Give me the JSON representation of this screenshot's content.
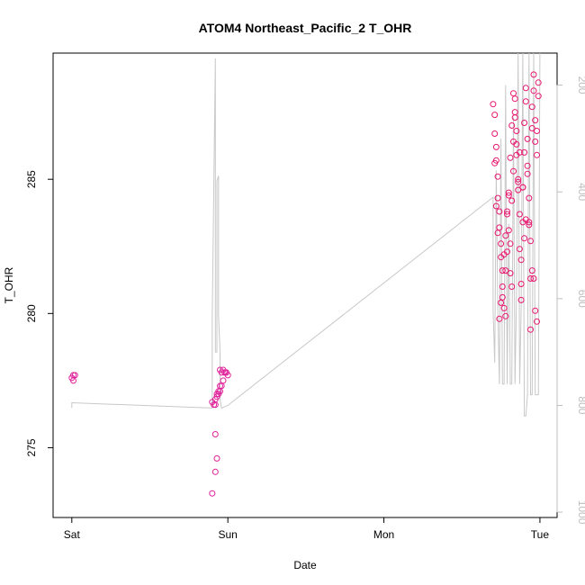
{
  "chart_data": {
    "type": "scatter",
    "title": "ATOM4 Northeast_Pacific_2 T_OHR",
    "xlabel": "Date",
    "ylabel": "T_OHR",
    "x_ticks": [
      {
        "label": "Sat",
        "value": 0
      },
      {
        "label": "Sun",
        "value": 1
      },
      {
        "label": "Mon",
        "value": 2
      },
      {
        "label": "Tue",
        "value": 3
      }
    ],
    "y_ticks": [
      275,
      280,
      285
    ],
    "y2_ticks": [
      200,
      400,
      600,
      800,
      1000
    ],
    "xlim": [
      -0.12,
      3.11
    ],
    "ylim": [
      272.4,
      289.7
    ],
    "y2lim": [
      1010,
      140
    ],
    "grid": false,
    "colors": {
      "axes": "#000000",
      "line": "#c8c8c8",
      "secondary_axis": "#bdbdbd",
      "points_low": "#e0209a",
      "points_high": "#e8146e"
    },
    "series": [
      {
        "kind": "points",
        "x": [
          0,
          0.01,
          0.01,
          0.02,
          0.9,
          0.91,
          0.92,
          0.93,
          0.94,
          0.95,
          0.96,
          0.97,
          0.98,
          0.99,
          1.0,
          0.92,
          0.92,
          0.93,
          0.92,
          0.9,
          0.93,
          0.94,
          0.95,
          0.95,
          0.96,
          0.97,
          0.98,
          0.99
        ],
        "y": [
          277.6,
          277.7,
          277.5,
          277.7,
          276.7,
          276.6,
          276.8,
          276.9,
          277.0,
          277.1,
          277.3,
          277.5,
          277.8,
          277.8,
          277.7,
          276.6,
          275.5,
          274.6,
          274.1,
          273.3,
          277.0,
          277.1,
          277.3,
          277.9,
          277.8,
          277.9,
          277.8,
          277.8
        ]
      },
      {
        "kind": "points",
        "x": [
          2.7,
          2.71,
          2.71,
          2.72,
          2.72,
          2.73,
          2.73,
          2.74,
          2.74,
          2.75,
          2.75,
          2.76,
          2.76,
          2.77,
          2.78,
          2.78,
          2.79,
          2.79,
          2.8,
          2.8,
          2.81,
          2.81,
          2.82,
          2.82,
          2.83,
          2.83,
          2.84,
          2.84,
          2.85,
          2.85,
          2.86,
          2.86,
          2.87,
          2.87,
          2.88,
          2.88,
          2.89,
          2.89,
          2.9,
          2.9,
          2.91,
          2.91,
          2.92,
          2.92,
          2.93,
          2.93,
          2.94,
          2.94,
          2.95,
          2.95,
          2.96,
          2.96,
          2.97,
          2.97,
          2.98,
          2.98,
          2.99,
          2.99,
          2.95,
          2.96,
          2.97,
          2.98,
          2.94,
          2.93,
          2.88,
          2.86,
          2.85,
          2.84,
          2.83,
          2.82,
          2.81,
          2.8,
          2.79,
          2.78,
          2.77,
          2.76,
          2.75,
          2.74,
          2.73,
          2.72,
          2.71,
          2.87,
          2.89,
          2.91,
          2.9,
          2.92
        ],
        "y": [
          287.8,
          287.4,
          286.7,
          286.2,
          285.7,
          285.1,
          284.3,
          283.8,
          283.2,
          282.6,
          282.1,
          281.6,
          280.6,
          280.2,
          281.6,
          279.9,
          282.3,
          283.7,
          284.4,
          283.1,
          282.6,
          281.5,
          281.0,
          284.2,
          285.3,
          286.4,
          287.3,
          288.0,
          286.8,
          285.9,
          285.0,
          284.6,
          283.7,
          282.4,
          281.1,
          280.5,
          283.4,
          284.7,
          286.0,
          287.1,
          288.4,
          287.9,
          286.5,
          285.5,
          284.3,
          283.4,
          282.7,
          281.3,
          286.9,
          287.7,
          288.3,
          288.9,
          287.2,
          286.4,
          286.8,
          285.9,
          288.1,
          288.6,
          281.6,
          281.3,
          280.1,
          279.7,
          279.4,
          283.3,
          282.0,
          284.9,
          286.3,
          287.5,
          288.2,
          287.0,
          285.8,
          284.5,
          283.8,
          282.9,
          282.2,
          281.0,
          280.4,
          279.8,
          283.0,
          284.0,
          285.6,
          286.0,
          284.7,
          283.5,
          282.8,
          285.2
        ]
      }
    ],
    "line": {
      "note": "secondary series on right axis",
      "x": [
        0.0,
        0.0,
        0.9,
        0.9,
        0.92,
        0.92,
        0.93,
        0.93,
        0.94,
        0.94,
        0.95,
        0.95,
        0.96,
        0.96,
        1.0,
        2.7,
        2.7,
        2.71,
        2.72,
        2.73,
        2.74,
        2.75,
        2.76,
        2.77,
        2.78,
        2.79,
        2.8,
        2.81,
        2.82,
        2.83,
        2.84,
        2.85,
        2.86,
        2.87,
        2.88,
        2.89,
        2.9,
        2.91,
        2.92,
        2.93,
        2.94,
        2.95,
        2.96,
        2.97,
        2.98,
        2.99,
        3.0
      ],
      "y2": [
        805,
        795,
        805,
        640,
        150,
        700,
        700,
        380,
        370,
        630,
        700,
        790,
        805,
        805,
        800,
        410,
        620,
        720,
        360,
        620,
        760,
        300,
        760,
        760,
        200,
        760,
        460,
        760,
        760,
        260,
        760,
        600,
        140,
        760,
        620,
        140,
        820,
        820,
        780,
        140,
        780,
        780,
        140,
        780,
        780,
        780,
        140
      ]
    }
  }
}
